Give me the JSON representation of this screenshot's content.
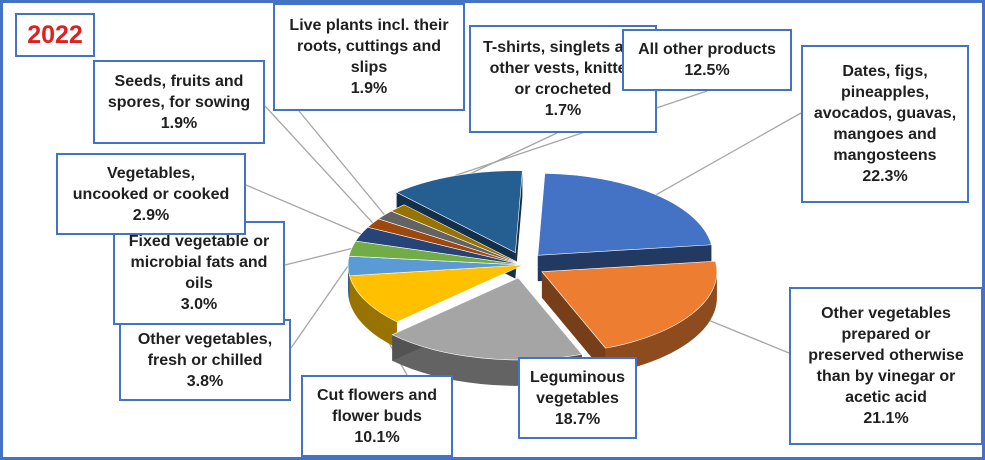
{
  "chart_data": {
    "type": "pie",
    "title": "2022",
    "title_color": "#e02020",
    "slices": [
      {
        "label": "Dates, figs, pineapples, avocados, guavas, mangoes and mangosteens",
        "value": 22.3,
        "value_label": "22.3%",
        "color": "#4472c4",
        "exploded": true
      },
      {
        "label": "Other vegetables prepared or preserved otherwise than by vinegar or acetic acid",
        "value": 21.1,
        "value_label": "21.1%",
        "color": "#ed7d31",
        "exploded": true
      },
      {
        "label": "Leguminous vegetables",
        "value": 18.7,
        "value_label": "18.7%",
        "color": "#a5a5a5",
        "exploded": true
      },
      {
        "label": "Cut flowers and flower buds",
        "value": 10.1,
        "value_label": "10.1%",
        "color": "#ffc000",
        "exploded": false
      },
      {
        "label": "Other vegetables, fresh or chilled",
        "value": 3.8,
        "value_label": "3.8%",
        "color": "#5b9bd5",
        "exploded": false
      },
      {
        "label": "Fixed vegetable or microbial fats and oils",
        "value": 3.0,
        "value_label": "3.0%",
        "color": "#70ad47",
        "exploded": false
      },
      {
        "label": "Vegetables, uncooked or cooked",
        "value": 2.9,
        "value_label": "2.9%",
        "color": "#264478",
        "exploded": false
      },
      {
        "label": "Seeds, fruits and spores, for sowing",
        "value": 1.9,
        "value_label": "1.9%",
        "color": "#9e480e",
        "exploded": false
      },
      {
        "label": "Live plants incl. their roots, cuttings and slips",
        "value": 1.9,
        "value_label": "1.9%",
        "color": "#636363",
        "exploded": false
      },
      {
        "label": "T-shirts, singlets and other vests, knitted or crocheted",
        "value": 1.7,
        "value_label": "1.7%",
        "color": "#997300",
        "exploded": false
      },
      {
        "label": "All other products",
        "value": 12.5,
        "value_label": "12.5%",
        "color": "#255e91",
        "exploded": true
      }
    ]
  },
  "callouts": {
    "dates": {
      "lines": [
        "Dates, figs,",
        "pineapples,",
        "avocados, guavas,",
        "mangoes and",
        "mangosteens"
      ],
      "value": "22.3%"
    },
    "other_veg_prepared": {
      "lines": [
        "Other vegetables",
        "prepared or",
        "preserved otherwise",
        "than by vinegar or",
        "acetic acid"
      ],
      "value": "21.1%"
    },
    "leguminous": {
      "lines": [
        "Leguminous",
        "vegetables"
      ],
      "value": "18.7%"
    },
    "cut_flowers": {
      "lines": [
        "Cut flowers and",
        "flower buds"
      ],
      "value": "10.1%"
    },
    "other_veg_fresh": {
      "lines": [
        "Other vegetables,",
        "fresh or chilled"
      ],
      "value": "3.8%"
    },
    "fixed_fats": {
      "lines": [
        "Fixed vegetable or",
        "microbial fats and",
        "oils"
      ],
      "value": "3.0%"
    },
    "veg_cooked": {
      "lines": [
        "Vegetables,",
        "uncooked or cooked"
      ],
      "value": "2.9%"
    },
    "seeds": {
      "lines": [
        "Seeds, fruits and",
        "spores, for sowing"
      ],
      "value": "1.9%"
    },
    "live_plants": {
      "lines": [
        "Live plants incl. their",
        "roots, cuttings and",
        "slips"
      ],
      "value": "1.9%"
    },
    "tshirts": {
      "lines": [
        "T-shirts, singlets and",
        "other vests, knitted",
        "or crocheted"
      ],
      "value": "1.7%"
    },
    "all_other": {
      "lines": [
        "All other products"
      ],
      "value": "12.5%"
    }
  }
}
